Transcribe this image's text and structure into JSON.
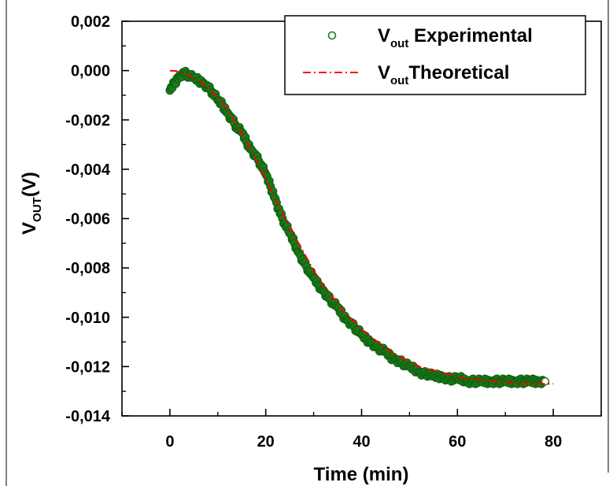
{
  "chart_data": {
    "type": "scatter",
    "xlabel": "Time (min)",
    "ylabel": {
      "main": "V",
      "sub": "OUT",
      "suffix": "(V)"
    },
    "xlim": [
      -10,
      90
    ],
    "ylim": [
      -0.014,
      0.002
    ],
    "x_ticks": [
      {
        "value": 0,
        "label": "0"
      },
      {
        "value": 20,
        "label": "20"
      },
      {
        "value": 40,
        "label": "40"
      },
      {
        "value": 60,
        "label": "60"
      },
      {
        "value": 80,
        "label": "80"
      }
    ],
    "y_ticks": [
      {
        "value": 0.002,
        "label": "0,002"
      },
      {
        "value": 0.0,
        "label": "0,000"
      },
      {
        "value": -0.002,
        "label": "-0,002"
      },
      {
        "value": -0.004,
        "label": "-0,004"
      },
      {
        "value": -0.006,
        "label": "-0,006"
      },
      {
        "value": -0.008,
        "label": "-0,008"
      },
      {
        "value": -0.01,
        "label": "-0,010"
      },
      {
        "value": -0.012,
        "label": "-0,012"
      },
      {
        "value": -0.014,
        "label": "-0,014"
      }
    ],
    "legend_position": "top-right",
    "series": [
      {
        "name": {
          "main": "V",
          "sub": "out",
          "rest": " Experimental"
        },
        "style": "scatter-circle",
        "color": "#1a7a1a",
        "x": [
          0,
          1,
          2,
          3,
          4,
          5,
          6,
          7,
          8,
          9,
          10,
          11,
          12,
          13,
          14,
          15,
          16,
          17,
          18,
          19,
          20,
          21,
          22,
          23,
          24,
          25,
          26,
          27,
          28,
          29,
          30,
          31,
          32,
          33,
          34,
          35,
          36,
          37,
          38,
          39,
          40,
          41,
          42,
          43,
          44,
          45,
          46,
          47,
          48,
          49,
          50,
          51,
          52,
          53,
          54,
          55,
          56,
          57,
          58,
          59,
          60,
          61,
          62,
          63,
          64,
          65,
          66,
          67,
          68,
          69,
          70,
          71,
          72,
          73,
          74,
          75,
          76,
          77,
          78
        ],
        "y": [
          -0.0008,
          -0.0005,
          -0.0002,
          -0.0001,
          -0.0002,
          -0.0003,
          -0.0004,
          -0.0005,
          -0.0007,
          -0.0009,
          -0.0012,
          -0.0014,
          -0.0017,
          -0.002,
          -0.0023,
          -0.0025,
          -0.0029,
          -0.0032,
          -0.0035,
          -0.0038,
          -0.0042,
          -0.0047,
          -0.0052,
          -0.0058,
          -0.0062,
          -0.0066,
          -0.007,
          -0.0074,
          -0.0078,
          -0.0081,
          -0.0084,
          -0.0087,
          -0.0089,
          -0.0092,
          -0.0094,
          -0.0096,
          -0.0099,
          -0.0101,
          -0.0103,
          -0.0105,
          -0.0107,
          -0.0109,
          -0.011,
          -0.0112,
          -0.0113,
          -0.0114,
          -0.0116,
          -0.0117,
          -0.0118,
          -0.0119,
          -0.012,
          -0.0121,
          -0.0122,
          -0.0123,
          -0.0123,
          -0.0124,
          -0.0124,
          -0.0124,
          -0.0125,
          -0.0125,
          -0.0125,
          -0.0125,
          -0.0126,
          -0.0126,
          -0.0126,
          -0.0126,
          -0.0126,
          -0.0126,
          -0.0126,
          -0.0126,
          -0.0126,
          -0.0126,
          -0.0126,
          -0.0126,
          -0.0126,
          -0.0126,
          -0.0126,
          -0.0126,
          -0.0126
        ]
      },
      {
        "name": {
          "main": "V",
          "sub": "out",
          "rest": "Theoretical"
        },
        "style": "dash-dot-line",
        "color": "#ff0000",
        "x": [
          0,
          2,
          4,
          6,
          8,
          10,
          12,
          14,
          16,
          18,
          20,
          22,
          24,
          26,
          28,
          30,
          32,
          34,
          36,
          38,
          40,
          42,
          44,
          46,
          48,
          50,
          52,
          54,
          56,
          58,
          60,
          62,
          64,
          66,
          68,
          70,
          72,
          74,
          76,
          78,
          80
        ],
        "y": [
          0.0,
          -3e-05,
          -0.0002,
          -0.0004,
          -0.0007,
          -0.0011,
          -0.0016,
          -0.0022,
          -0.0029,
          -0.0036,
          -0.0044,
          -0.0052,
          -0.006,
          -0.0067,
          -0.0074,
          -0.0081,
          -0.0087,
          -0.0092,
          -0.0097,
          -0.0101,
          -0.0105,
          -0.0108,
          -0.0111,
          -0.0114,
          -0.0116,
          -0.0118,
          -0.012,
          -0.0121,
          -0.0122,
          -0.0123,
          -0.0124,
          -0.0125,
          -0.0125,
          -0.0126,
          -0.0126,
          -0.0126,
          -0.0127,
          -0.0127,
          -0.0127,
          -0.0127,
          -0.0127
        ]
      }
    ]
  }
}
